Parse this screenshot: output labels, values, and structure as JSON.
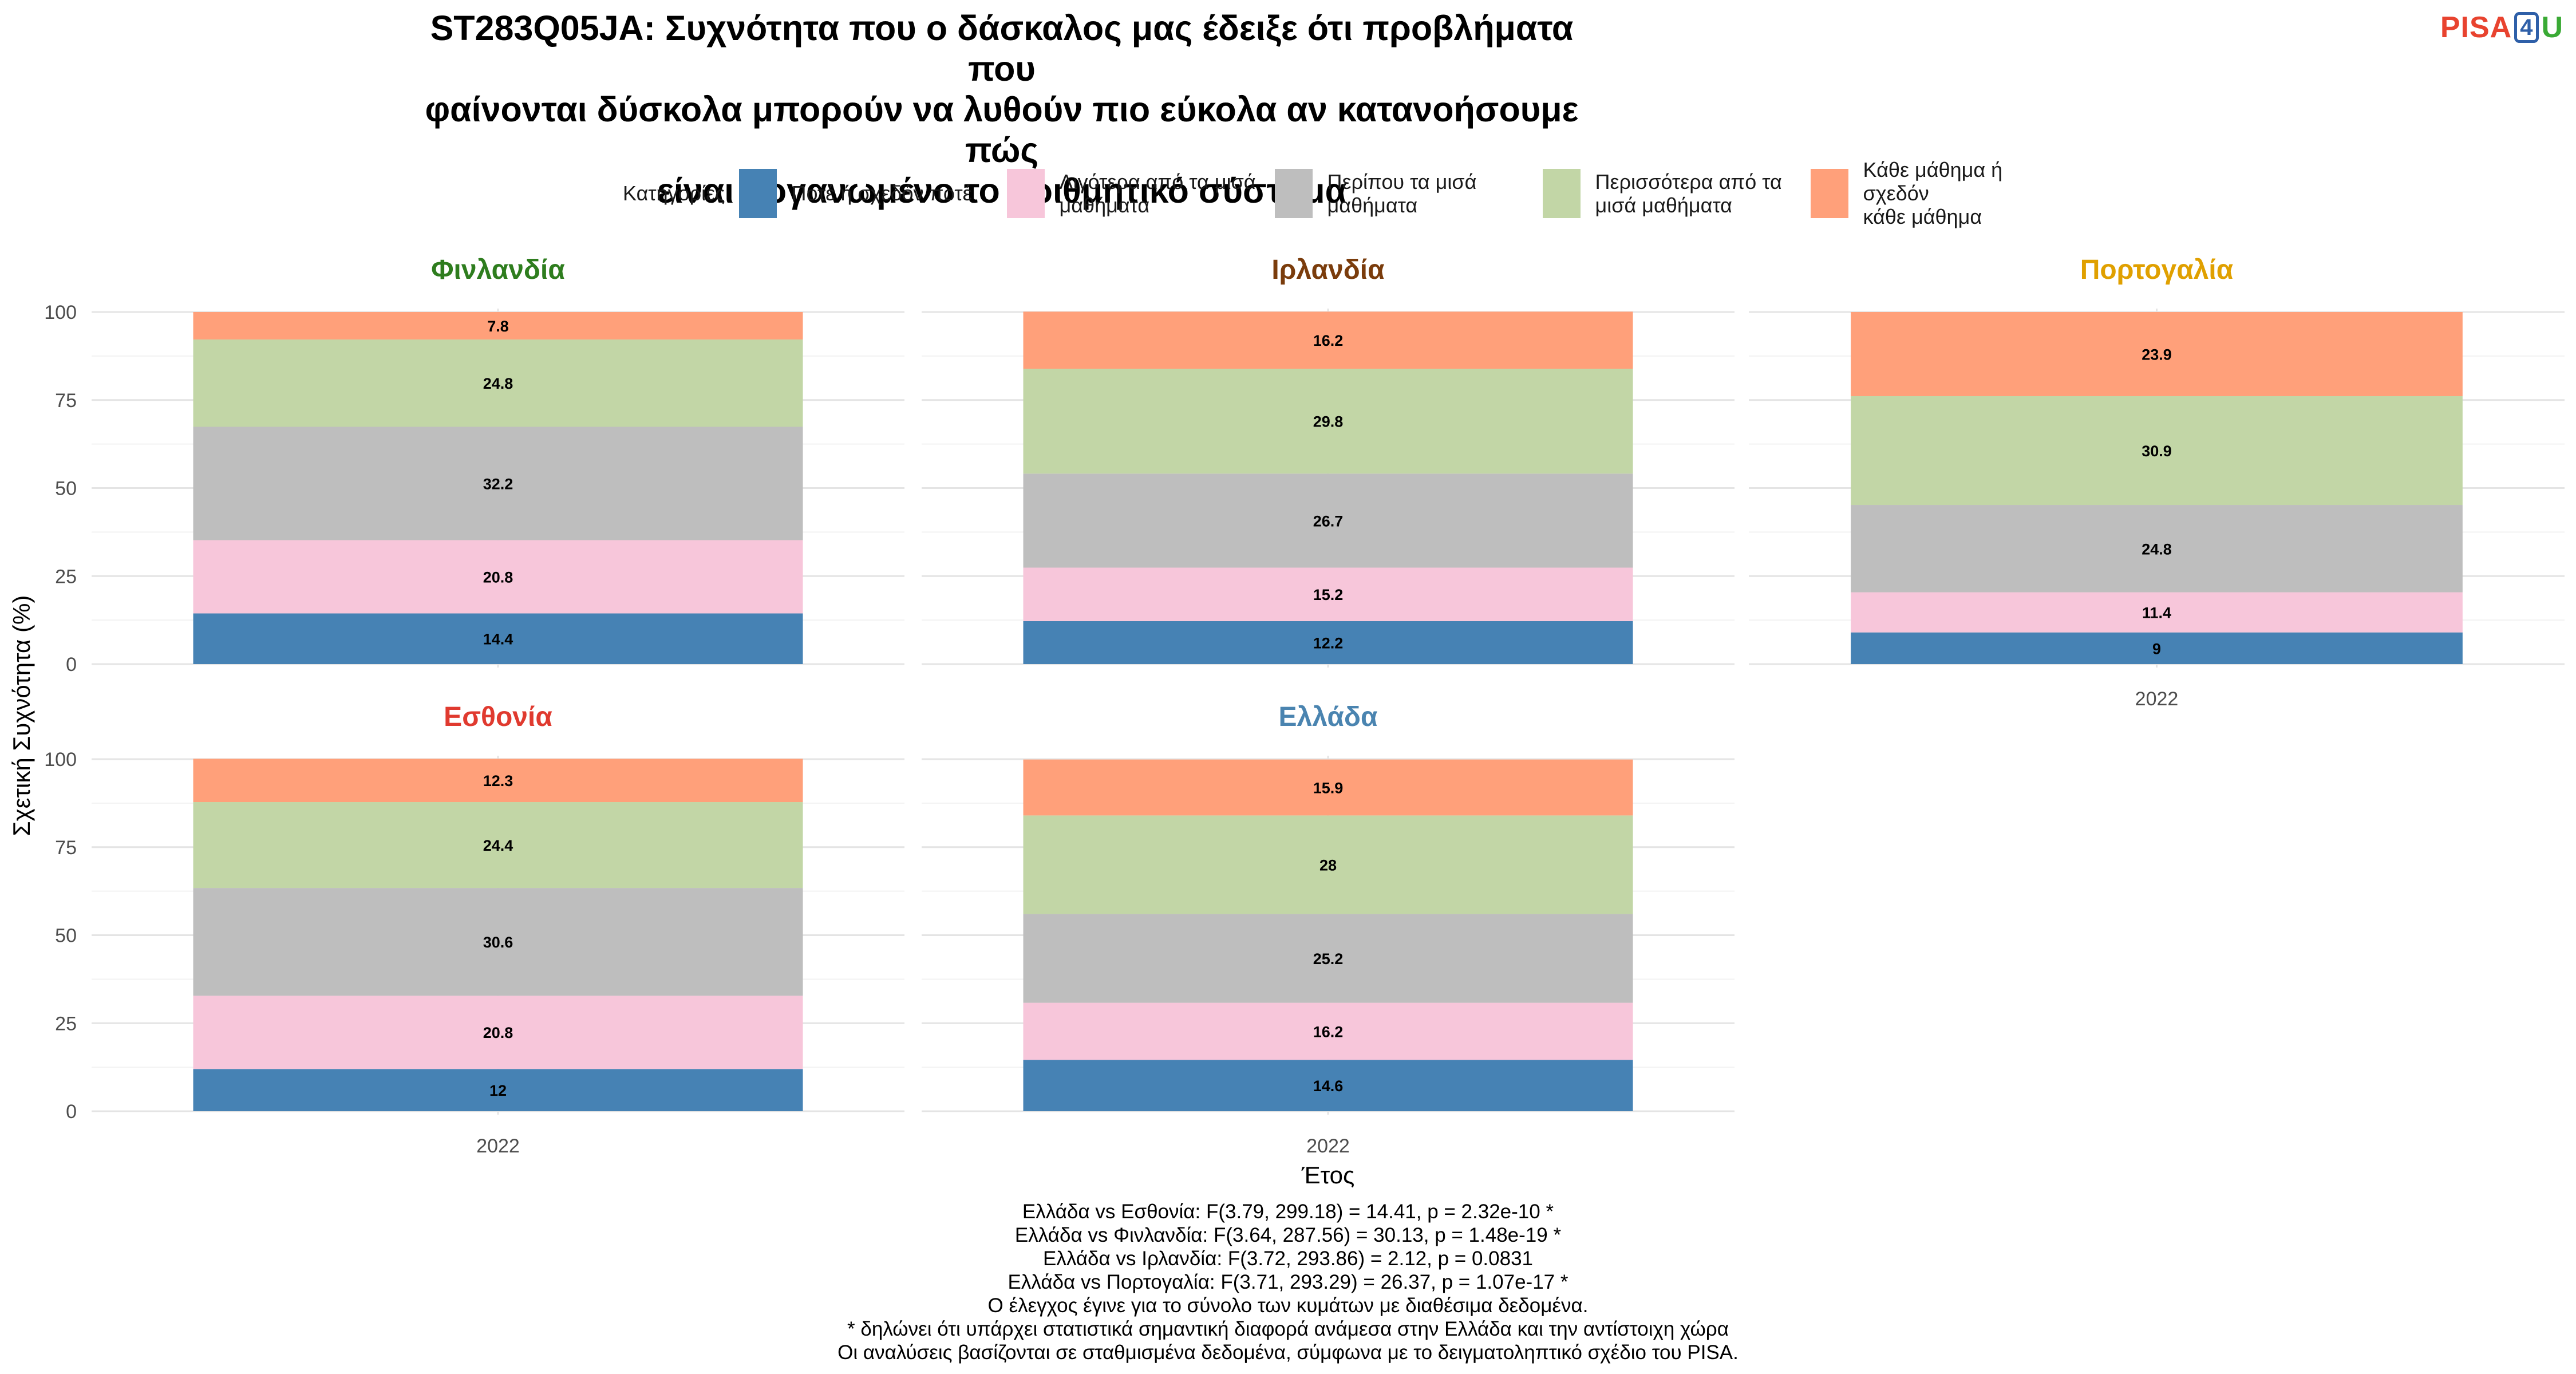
{
  "title_lines": [
    "ST283Q05JA: Συχνότητα που ο δάσκαλος μας έδειξε ότι προβλήματα που",
    "φαίνονται δύσκολα μπορούν να λυθούν πιο εύκολα αν κατανοήσουμε πώς",
    "είναι οργανωμένο το αριθμητικό σύστημα"
  ],
  "logo": {
    "part1": "PISA",
    "part2": "4",
    "part3": "U"
  },
  "legend": {
    "title": "Κατηγορίες",
    "items": [
      {
        "label": "Ποτέ ή σχεδόν ποτέ",
        "color": "#4682b4"
      },
      {
        "label": "Λιγότερα από τα μισά\nμαθήματα",
        "color": "#f7c6da"
      },
      {
        "label": "Περίπου τα μισά\nμαθήματα",
        "color": "#bebebe"
      },
      {
        "label": "Περισσότερα από τα\nμισά μαθήματα",
        "color": "#c2d6a6"
      },
      {
        "label": "Κάθε μάθημα ή σχεδόν\nκάθε μάθημα",
        "color": "#ffa07a"
      }
    ]
  },
  "chart_data": {
    "type": "bar",
    "stacked": true,
    "xlabel": "Έτος",
    "ylabel": "Σχετική Συχνότητα (%)",
    "ylim": [
      0,
      100
    ],
    "yticks": [
      0,
      25,
      50,
      75,
      100
    ],
    "grid": true,
    "legend_position": "top",
    "series_names": [
      "Ποτέ ή σχεδόν ποτέ",
      "Λιγότερα από τα μισά μαθήματα",
      "Περίπου τα μισά μαθήματα",
      "Περισσότερα από τα μισά μαθήματα",
      "Κάθε μάθημα ή σχεδόν κάθε μάθημα"
    ],
    "series_colors": [
      "#4682b4",
      "#f7c6da",
      "#bebebe",
      "#c2d6a6",
      "#ffa07a"
    ],
    "panels": [
      {
        "country": "Φινλανδία",
        "color": "#2e7d1e",
        "category": "2022",
        "show_xtick": false,
        "values": [
          14.4,
          20.8,
          32.2,
          24.8,
          7.8
        ]
      },
      {
        "country": "Ιρλανδία",
        "color": "#7a3c0c",
        "category": "2022",
        "show_xtick": false,
        "values": [
          12.2,
          15.2,
          26.7,
          29.8,
          16.2
        ]
      },
      {
        "country": "Πορτογαλία",
        "color": "#e0a000",
        "category": "2022",
        "show_xtick": true,
        "values": [
          9,
          11.4,
          24.8,
          30.9,
          23.9
        ]
      },
      {
        "country": "Εσθονία",
        "color": "#e03a2f",
        "category": "2022",
        "show_xtick": true,
        "values": [
          12,
          20.8,
          30.6,
          24.4,
          12.3
        ]
      },
      {
        "country": "Ελλάδα",
        "color": "#4a84b0",
        "category": "2022",
        "show_xtick": true,
        "values": [
          14.6,
          16.2,
          25.2,
          28,
          15.9
        ]
      }
    ]
  },
  "notes": [
    "Ελλάδα vs Εσθονία: F(3.79, 299.18) = 14.41, p = 2.32e-10 *",
    "Ελλάδα vs Φινλανδία: F(3.64, 287.56) = 30.13, p = 1.48e-19 *",
    "Ελλάδα vs Ιρλανδία: F(3.72, 293.86) = 2.12, p = 0.0831",
    "Ελλάδα vs Πορτογαλία: F(3.71, 293.29) = 26.37, p = 1.07e-17 *",
    "Ο έλεγχος έγινε για το σύνολο των κυμάτων με διαθέσιμα δεδομένα.",
    "* δηλώνει ότι υπάρχει στατιστικά σημαντική διαφορά ανάμεσα στην Ελλάδα και την αντίστοιχη χώρα",
    "Οι αναλύσεις βασίζονται σε σταθμισμένα δεδομένα, σύμφωνα με το δειγματοληπτικό σχέδιο του PISA."
  ]
}
